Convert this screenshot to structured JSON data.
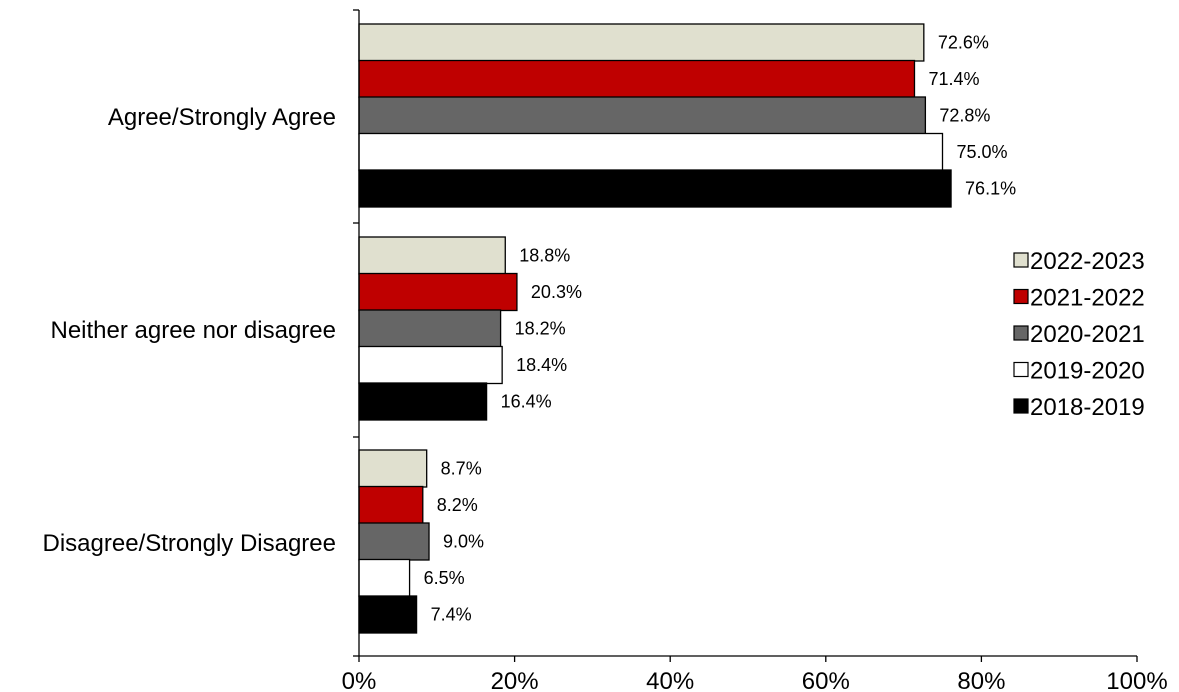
{
  "chart_data": {
    "type": "bar",
    "orientation": "horizontal",
    "title": "",
    "xlabel": "",
    "ylabel": "",
    "xlim": [
      0,
      100
    ],
    "x_unit": "%",
    "grid": false,
    "legend_position": "right",
    "categories": [
      "Agree/Strongly Agree",
      "Neither agree nor disagree",
      "Disagree/Strongly Disagree"
    ],
    "x_ticks": [
      "0%",
      "20%",
      "40%",
      "60%",
      "80%",
      "100%"
    ],
    "series": [
      {
        "name": "2022-2023",
        "color": "#e0e0cf",
        "values": [
          72.6,
          18.8,
          8.7
        ],
        "labels": [
          "72.6%",
          "18.8%",
          "8.7%"
        ]
      },
      {
        "name": "2021-2022",
        "color": "#bf0000",
        "values": [
          71.4,
          20.3,
          8.2
        ],
        "labels": [
          "71.4%",
          "20.3%",
          "8.2%"
        ]
      },
      {
        "name": "2020-2021",
        "color": "#666666",
        "values": [
          72.8,
          18.2,
          9.0
        ],
        "labels": [
          "72.8%",
          "18.2%",
          "9.0%"
        ]
      },
      {
        "name": "2019-2020",
        "color": "#ffffff",
        "values": [
          75.0,
          18.4,
          6.5
        ],
        "labels": [
          "75.0%",
          "18.4%",
          "6.5%"
        ]
      },
      {
        "name": "2018-2019",
        "color": "#000000",
        "values": [
          76.1,
          16.4,
          7.4
        ],
        "labels": [
          "76.1%",
          "16.4%",
          "7.4%"
        ]
      }
    ]
  }
}
